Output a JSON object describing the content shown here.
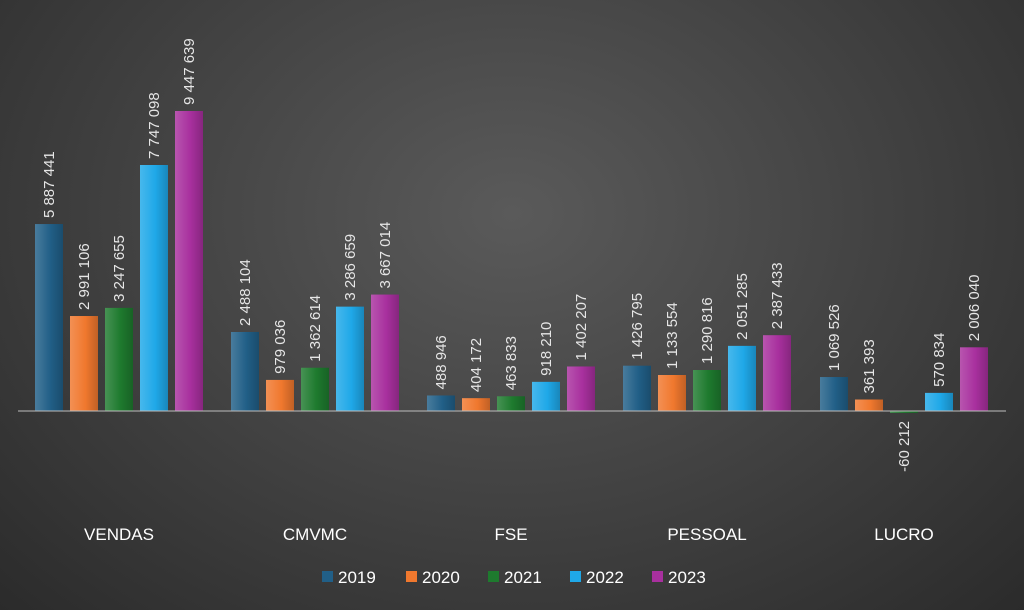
{
  "chart_data": {
    "type": "bar",
    "categories": [
      "VENDAS",
      "CMVMC",
      "FSE",
      "PESSOAL",
      "LUCRO"
    ],
    "series": [
      {
        "name": "2019",
        "color": "#215F87",
        "values": [
          5887441,
          2488104,
          488946,
          1426795,
          1069526
        ],
        "labels": [
          "5 887 441",
          "2 488 104",
          "488 946",
          "1 426 795",
          "1 069 526"
        ]
      },
      {
        "name": "2020",
        "color": "#F0782E",
        "values": [
          2991106,
          979036,
          404172,
          1133554,
          361393
        ],
        "labels": [
          "2 991 106",
          "979 036",
          "404 172",
          "1 133 554",
          "361 393"
        ]
      },
      {
        "name": "2021",
        "color": "#1E7A2E",
        "values": [
          3247655,
          1362614,
          463833,
          1290816,
          -60212
        ],
        "labels": [
          "3 247 655",
          "1 362 614",
          "463 833",
          "1 290 816",
          "-60 212"
        ]
      },
      {
        "name": "2022",
        "color": "#1FA8E8",
        "values": [
          7747098,
          3286659,
          918210,
          2051285,
          570834
        ],
        "labels": [
          "7 747 098",
          "3 286 659",
          "918 210",
          "2 051 285",
          "570 834"
        ]
      },
      {
        "name": "2023",
        "color": "#A8309E",
        "values": [
          9447639,
          3667014,
          1402207,
          2387433,
          2006040
        ],
        "labels": [
          "9 447 639",
          "3 667 014",
          "1 402 207",
          "2 387 433",
          "2 006 040"
        ]
      }
    ],
    "data_labels": "vertical",
    "legend": "bottom",
    "grid": false,
    "background": "#3d3d3d"
  }
}
